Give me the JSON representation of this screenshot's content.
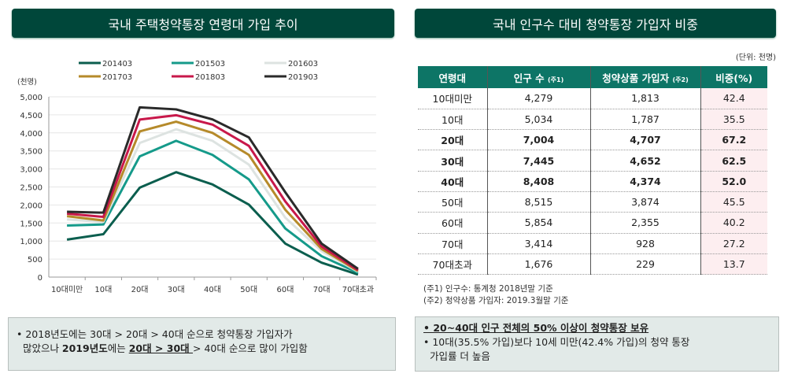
{
  "left": {
    "title": "국내 주택청약통장 연령대 가입 추이",
    "summary": [
      {
        "text": "• 2018년도에는 30대 > 20대 > 40대 순으로 청약통장 가입자가",
        "bold": false,
        "underline": false
      },
      {
        "br": true
      },
      {
        "text": "  많았으나 ",
        "bold": false,
        "underline": false
      },
      {
        "text": "2019년도",
        "bold": true,
        "underline": false
      },
      {
        "text": "에는 ",
        "bold": false,
        "underline": false
      },
      {
        "text": "20대 > 30대 ",
        "bold": true,
        "underline": true
      },
      {
        "text": "> 40대 순으로 많이 가입함",
        "bold": false,
        "underline": false
      }
    ]
  },
  "right": {
    "title": "국내 인구수 대비 청약통장 가입자 비중",
    "unit": "(단위: 천명)",
    "table": {
      "headers": [
        {
          "label": "연령대",
          "note": ""
        },
        {
          "label": "인구 수 ",
          "note": "(주1)"
        },
        {
          "label": "청약상품 가입자 ",
          "note": "(주2)"
        },
        {
          "label": "비중(%)",
          "note": ""
        }
      ],
      "rows": [
        {
          "cells": [
            "10대미만",
            "4,279",
            "1,813",
            "42.4"
          ],
          "bold": false
        },
        {
          "cells": [
            "10대",
            "5,034",
            "1,787",
            "35.5"
          ],
          "bold": false
        },
        {
          "cells": [
            "20대",
            "7,004",
            "4,707",
            "67.2"
          ],
          "bold": true
        },
        {
          "cells": [
            "30대",
            "7,445",
            "4,652",
            "62.5"
          ],
          "bold": true
        },
        {
          "cells": [
            "40대",
            "8,408",
            "4,374",
            "52.0"
          ],
          "bold": true
        },
        {
          "cells": [
            "50대",
            "8,515",
            "3,874",
            "45.5"
          ],
          "bold": false
        },
        {
          "cells": [
            "60대",
            "5,854",
            "2,355",
            "40.2"
          ],
          "bold": false
        },
        {
          "cells": [
            "70대",
            "3,414",
            "928",
            "27.2"
          ],
          "bold": false
        },
        {
          "cells": [
            "70대초과",
            "1,676",
            "229",
            "13.7"
          ],
          "bold": false
        }
      ]
    },
    "notes": [
      "(주1) 인구수: 통계청 2018년말 기준",
      "(주2) 청약상품 가입자: 2019.3월말 기준"
    ],
    "summary_line1": "• 20~40대 인구 전체의 50% 이상이 청약통장 보유",
    "summary_line2": "• 10대(35.5% 가입)보다 10세 미만(42.4% 가입)의 청약 통장",
    "summary_line3": "  가입률 더 높음"
  },
  "colors": {
    "header_bg": "#00473a",
    "table_header": "#0d7566",
    "ratio_bg": "#fdeef0",
    "box_bg": "#e2eae8"
  },
  "chart_data": {
    "type": "line",
    "ylabel": "(천명)",
    "ylim": [
      0,
      5000
    ],
    "yticks": [
      "0",
      "500",
      "1,000",
      "1,500",
      "2,000",
      "2,500",
      "3,000",
      "3,500",
      "4,000",
      "4,500",
      "5,000"
    ],
    "categories": [
      "10대미만",
      "10대",
      "20대",
      "30대",
      "40대",
      "50대",
      "60대",
      "70대",
      "70대초과"
    ],
    "legend": "top",
    "grid": true,
    "series": [
      {
        "name": "201403",
        "color": "#0b5e4e",
        "values": [
          1040,
          1190,
          2480,
          2910,
          2570,
          2010,
          930,
          400,
          70
        ]
      },
      {
        "name": "201503",
        "color": "#159a8a",
        "values": [
          1430,
          1460,
          3350,
          3780,
          3390,
          2710,
          1350,
          580,
          120
        ]
      },
      {
        "name": "201603",
        "color": "#dde3e1",
        "values": [
          1600,
          1530,
          3720,
          4100,
          3780,
          3120,
          1650,
          720,
          150
        ]
      },
      {
        "name": "201703",
        "color": "#b58a2a",
        "values": [
          1690,
          1570,
          4040,
          4310,
          4000,
          3390,
          1870,
          780,
          170
        ]
      },
      {
        "name": "201803",
        "color": "#c8184a",
        "values": [
          1760,
          1670,
          4370,
          4490,
          4230,
          3640,
          2100,
          850,
          190
        ]
      },
      {
        "name": "201903",
        "color": "#2a2a2a",
        "values": [
          1813,
          1787,
          4707,
          4652,
          4374,
          3874,
          2355,
          928,
          229
        ]
      }
    ]
  }
}
